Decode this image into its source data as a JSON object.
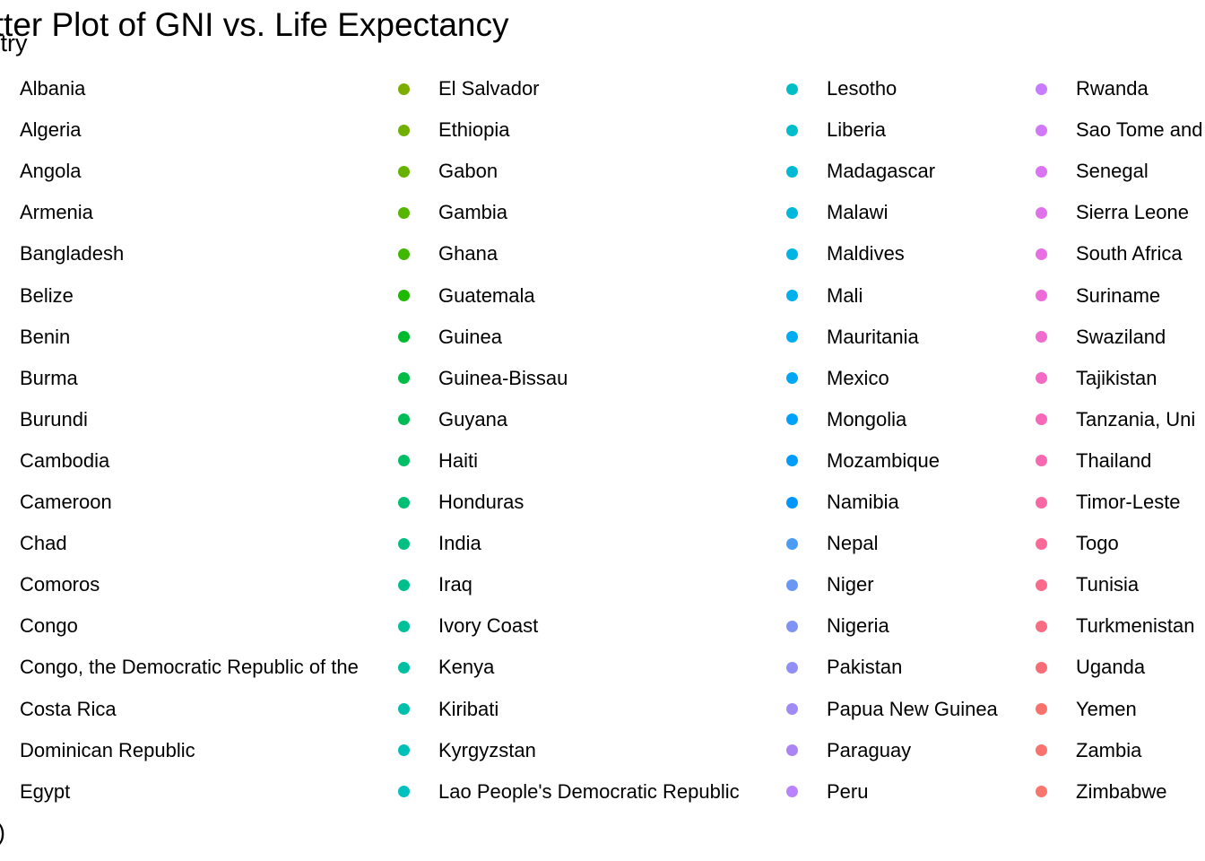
{
  "chart_data": {
    "type": "scatter",
    "title": "Scatter Plot of GNI vs. Life Expectancy",
    "axis_label_fragment": "$)",
    "legend": {
      "title": "Country",
      "columns": [
        [
          {
            "name": "Albania",
            "color": "#F8766D"
          },
          {
            "name": "Algeria",
            "color": "#F57A55"
          },
          {
            "name": "Angola",
            "color": "#F07E4A"
          },
          {
            "name": "Armenia",
            "color": "#EB8340"
          },
          {
            "name": "Bangladesh",
            "color": "#E58735"
          },
          {
            "name": "Belize",
            "color": "#DE8C2A"
          },
          {
            "name": "Benin",
            "color": "#D7911F"
          },
          {
            "name": "Burma",
            "color": "#CF9514"
          },
          {
            "name": "Burundi",
            "color": "#C69A0A"
          },
          {
            "name": "Cambodia",
            "color": "#BD9E00"
          },
          {
            "name": "Cameroon",
            "color": "#B3A200"
          },
          {
            "name": "Chad",
            "color": "#A8A500"
          },
          {
            "name": "Comoros",
            "color": "#9DA800"
          },
          {
            "name": "Congo",
            "color": "#92AB00"
          },
          {
            "name": "Congo, the Democratic Republic of the",
            "color": "#86AD00"
          },
          {
            "name": "Costa Rica",
            "color": "#80B000"
          },
          {
            "name": "Dominican Republic",
            "color": "#7CAE00"
          },
          {
            "name": "Egypt",
            "color": "#7AB200"
          }
        ],
        [
          {
            "name": "El Salvador",
            "color": "#7CAE00"
          },
          {
            "name": "Ethiopia",
            "color": "#72B000"
          },
          {
            "name": "Gabon",
            "color": "#65B300"
          },
          {
            "name": "Gambia",
            "color": "#55B500"
          },
          {
            "name": "Ghana",
            "color": "#40B700"
          },
          {
            "name": "Guatemala",
            "color": "#1EB900"
          },
          {
            "name": "Guinea",
            "color": "#00BA2E"
          },
          {
            "name": "Guinea-Bissau",
            "color": "#00BB45"
          },
          {
            "name": "Guyana",
            "color": "#00BC57"
          },
          {
            "name": "Haiti",
            "color": "#00BD66"
          },
          {
            "name": "Honduras",
            "color": "#00BE74"
          },
          {
            "name": "India",
            "color": "#00BF81"
          },
          {
            "name": "Iraq",
            "color": "#00BF8D"
          },
          {
            "name": "Ivory Coast",
            "color": "#00C098"
          },
          {
            "name": "Kenya",
            "color": "#00C0A3"
          },
          {
            "name": "Kiribati",
            "color": "#00C0AD"
          },
          {
            "name": "Kyrgyzstan",
            "color": "#00C0B7"
          },
          {
            "name": "Lao People's Democratic Republic",
            "color": "#00C0C0"
          }
        ],
        [
          {
            "name": "Lesotho",
            "color": "#00BFC4"
          },
          {
            "name": "Liberia",
            "color": "#00BDCC"
          },
          {
            "name": "Madagascar",
            "color": "#00BAD5"
          },
          {
            "name": "Malawi",
            "color": "#00B7DC"
          },
          {
            "name": "Maldives",
            "color": "#00B4E3"
          },
          {
            "name": "Mali",
            "color": "#00B0EA"
          },
          {
            "name": "Mauritania",
            "color": "#00ACF0"
          },
          {
            "name": "Mexico",
            "color": "#00A7F5"
          },
          {
            "name": "Mongolia",
            "color": "#00A2F9"
          },
          {
            "name": "Mozambique",
            "color": "#009CFC"
          },
          {
            "name": "Namibia",
            "color": "#0096FF"
          },
          {
            "name": "Nepal",
            "color": "#4C9BF5"
          },
          {
            "name": "Niger",
            "color": "#6A97F5"
          },
          {
            "name": "Nigeria",
            "color": "#7F93F5"
          },
          {
            "name": "Pakistan",
            "color": "#918EF5"
          },
          {
            "name": "Papua New Guinea",
            "color": "#A08AF4"
          },
          {
            "name": "Paraguay",
            "color": "#AD85F2"
          },
          {
            "name": "Peru",
            "color": "#B983FF"
          }
        ],
        [
          {
            "name": "Rwanda",
            "color": "#C77CFF"
          },
          {
            "name": "Sao Tome and",
            "color": "#D078F8"
          },
          {
            "name": "Senegal",
            "color": "#D975F1"
          },
          {
            "name": "Sierra Leone",
            "color": "#E072E9"
          },
          {
            "name": "South Africa",
            "color": "#E76FE1"
          },
          {
            "name": "Suriname",
            "color": "#EC6DD8"
          },
          {
            "name": "Swaziland",
            "color": "#F06BCE"
          },
          {
            "name": "Tajikistan",
            "color": "#F36AC4"
          },
          {
            "name": "Tanzania, Uni",
            "color": "#F669B9"
          },
          {
            "name": "Thailand",
            "color": "#F868AE"
          },
          {
            "name": "Timor-Leste",
            "color": "#F968A3"
          },
          {
            "name": "Togo",
            "color": "#FA6998"
          },
          {
            "name": "Tunisia",
            "color": "#FA6A8C"
          },
          {
            "name": "Turkmenistan",
            "color": "#FA6C81"
          },
          {
            "name": "Uganda",
            "color": "#F96E76"
          },
          {
            "name": "Yemen",
            "color": "#F8716B"
          },
          {
            "name": "Zambia",
            "color": "#F87370"
          },
          {
            "name": "Zimbabwe",
            "color": "#F8766D"
          }
        ]
      ]
    }
  }
}
